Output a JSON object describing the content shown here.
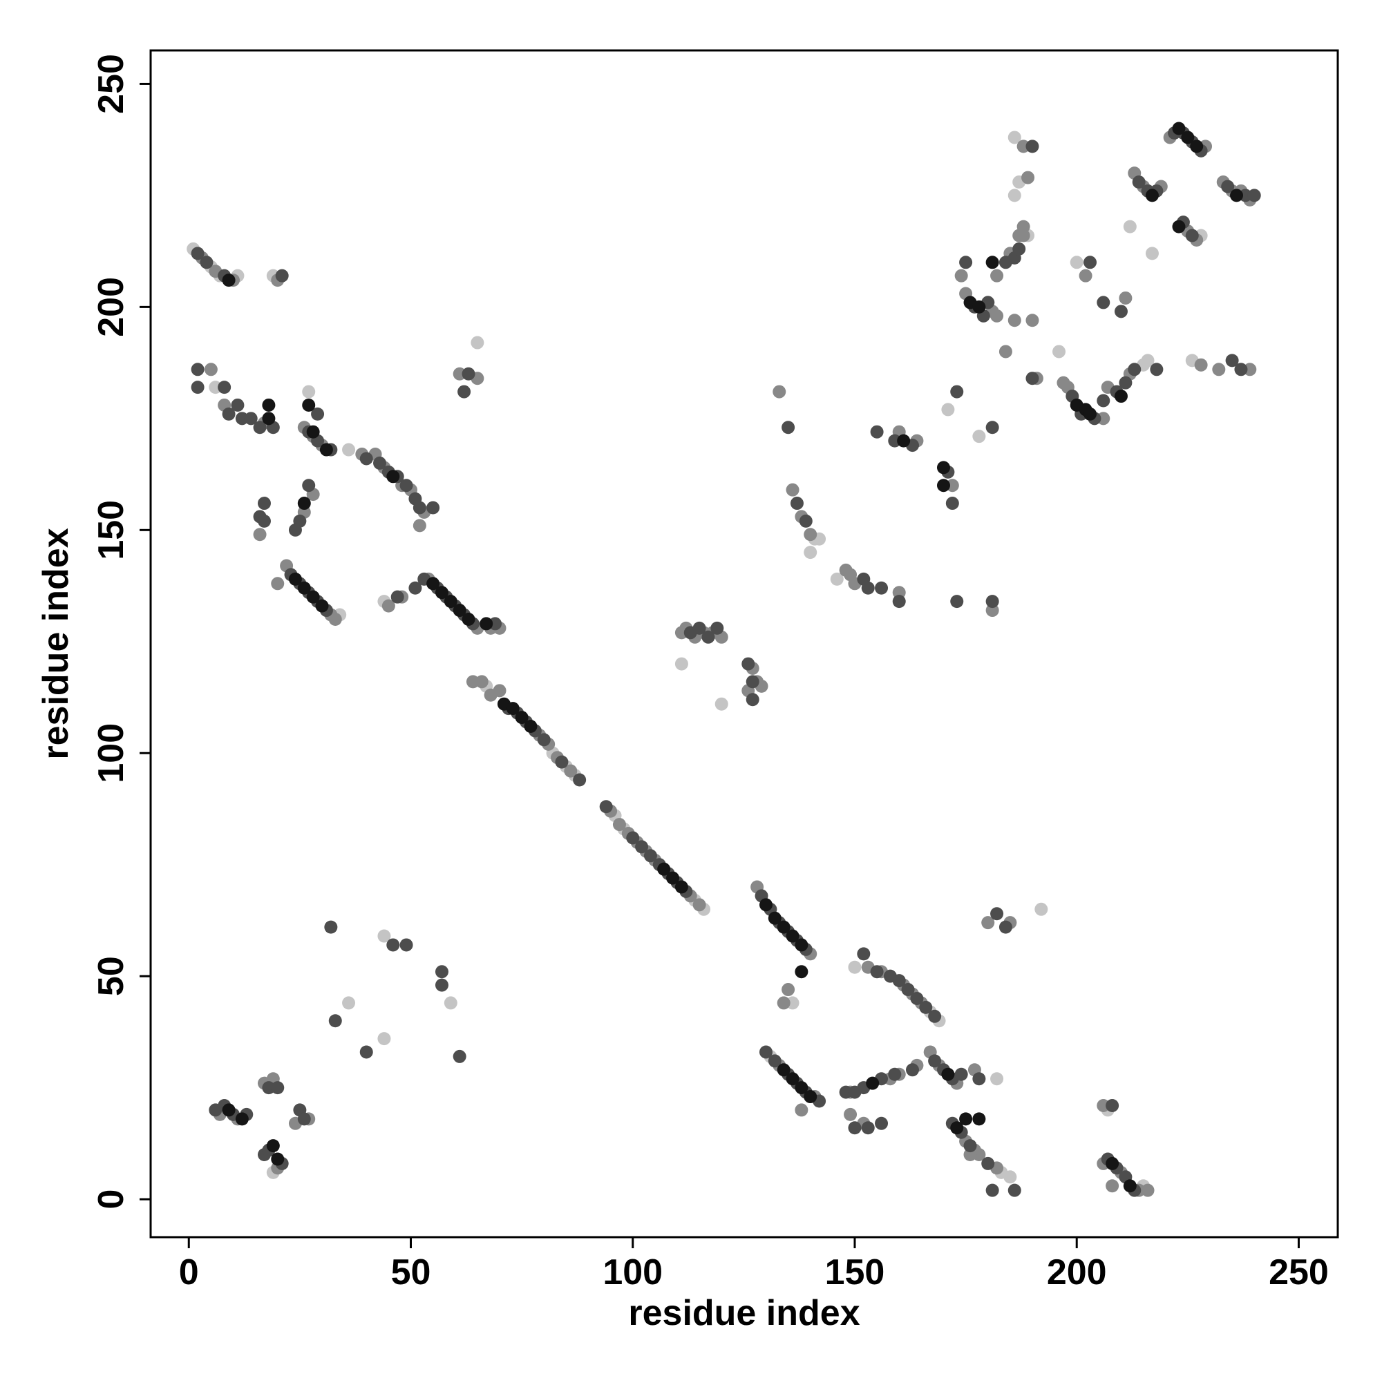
{
  "chart_data": {
    "type": "scatter",
    "xlabel": "residue index",
    "ylabel": "residue index",
    "xlim": [
      -8.6,
      258.8
    ],
    "ylim": [
      -8.5,
      257.5
    ],
    "xticks": [
      0,
      50,
      100,
      150,
      200,
      250
    ],
    "yticks": [
      0,
      50,
      100,
      150,
      200,
      250
    ],
    "grid": false,
    "series": [
      {
        "color": "#c4c4c4",
        "x": [
          1,
          5,
          7,
          11,
          19,
          6,
          27,
          36,
          44,
          65,
          67,
          82,
          85,
          87,
          96,
          98,
          114,
          116,
          111,
          120,
          140,
          141,
          142,
          146,
          171,
          178,
          186,
          187,
          186,
          189,
          196,
          200,
          212,
          217,
          216,
          215,
          226,
          228,
          34,
          9,
          19,
          36,
          44,
          44,
          59,
          131,
          136,
          150,
          167,
          169,
          182,
          183,
          185,
          192,
          215,
          207
        ],
        "y": [
          213,
          209,
          207,
          207,
          207,
          182,
          181,
          168,
          134,
          192,
          115,
          100,
          97,
          95,
          86,
          83,
          67,
          65,
          120,
          111,
          145,
          148,
          148,
          139,
          177,
          171,
          225,
          228,
          238,
          216,
          190,
          210,
          218,
          212,
          188,
          187,
          188,
          216,
          131,
          20,
          6,
          44,
          59,
          36,
          44,
          32,
          44,
          52,
          42,
          40,
          27,
          6,
          5,
          65,
          3,
          20
        ]
      },
      {
        "color": "#888888",
        "x": [
          54,
          65,
          68,
          70,
          64,
          66,
          68,
          70,
          79,
          81,
          83,
          86,
          95,
          97,
          99,
          101,
          103,
          105,
          113,
          115,
          128,
          140,
          135,
          3,
          6,
          10,
          20,
          5,
          8,
          17,
          26,
          28,
          30,
          28,
          26,
          16,
          20,
          22,
          32,
          33,
          39,
          42,
          44,
          48,
          50,
          53,
          52,
          45,
          48,
          61,
          65,
          111,
          112,
          114,
          116,
          118,
          120,
          127,
          126,
          128,
          129,
          133,
          136,
          138,
          140,
          148,
          149,
          150,
          160,
          160,
          164,
          172,
          181,
          174,
          175,
          180,
          181,
          182,
          182,
          185,
          188,
          184,
          186,
          190,
          187,
          188,
          189,
          188,
          191,
          197,
          198,
          206,
          207,
          212,
          202,
          211,
          213,
          215,
          219,
          221,
          229,
          225,
          227,
          233,
          235,
          237,
          239,
          232,
          239,
          228,
          7,
          11,
          17,
          19,
          24,
          27,
          20,
          138,
          134,
          133,
          141,
          149,
          158,
          160,
          164,
          149,
          152,
          153,
          156,
          161,
          163,
          165,
          167,
          169,
          173,
          177,
          175,
          177,
          178,
          182,
          176,
          180,
          185,
          206,
          206,
          210,
          214,
          216,
          208
        ],
        "y": [
          139,
          128,
          128,
          128,
          116,
          116,
          113,
          114,
          104,
          102,
          99,
          96,
          87,
          84,
          82,
          80,
          78,
          76,
          68,
          66,
          70,
          55,
          47,
          211,
          208,
          206,
          206,
          186,
          178,
          174,
          173,
          171,
          169,
          158,
          154,
          149,
          138,
          142,
          131,
          130,
          167,
          167,
          164,
          160,
          159,
          154,
          151,
          133,
          135,
          185,
          184,
          127,
          128,
          126,
          127,
          127,
          126,
          119,
          114,
          116,
          115,
          181,
          159,
          153,
          149,
          141,
          140,
          138,
          136,
          172,
          170,
          160,
          132,
          207,
          203,
          201,
          199,
          198,
          207,
          212,
          216,
          190,
          197,
          197,
          216,
          218,
          229,
          236,
          184,
          183,
          182,
          175,
          182,
          185,
          207,
          202,
          230,
          227,
          227,
          238,
          236,
          217,
          215,
          228,
          226,
          226,
          224,
          186,
          186,
          187,
          19,
          18,
          26,
          27,
          17,
          18,
          7,
          20,
          44,
          30,
          23,
          24,
          27,
          28,
          30,
          19,
          17,
          52,
          51,
          48,
          46,
          44,
          33,
          30,
          26,
          29,
          13,
          11,
          10,
          7,
          10,
          62,
          62,
          21,
          8,
          6,
          2,
          2,
          3
        ]
      },
      {
        "color": "#4d4d4d",
        "x": [
          53,
          56,
          58,
          60,
          62,
          64,
          69,
          72,
          74,
          76,
          78,
          80,
          84,
          88,
          94,
          100,
          102,
          104,
          106,
          108,
          110,
          112,
          129,
          131,
          133,
          135,
          137,
          139,
          2,
          4,
          8,
          21,
          2,
          2,
          8,
          9,
          11,
          12,
          14,
          16,
          19,
          29,
          27,
          29,
          32,
          27,
          25,
          24,
          16,
          17,
          17,
          23,
          25,
          27,
          29,
          31,
          40,
          43,
          45,
          47,
          49,
          51,
          52,
          55,
          51,
          47,
          62,
          63,
          113,
          115,
          117,
          119,
          126,
          127,
          127,
          135,
          137,
          139,
          152,
          153,
          156,
          160,
          155,
          159,
          163,
          171,
          172,
          173,
          181,
          173,
          181,
          175,
          177,
          179,
          180,
          184,
          186,
          187,
          190,
          190,
          199,
          201,
          204,
          206,
          209,
          211,
          213,
          218,
          203,
          206,
          210,
          214,
          216,
          218,
          222,
          224,
          226,
          228,
          224,
          226,
          234,
          238,
          240,
          235,
          237,
          6,
          8,
          10,
          13,
          18,
          20,
          25,
          26,
          17,
          18,
          21,
          32,
          33,
          40,
          46,
          49,
          57,
          57,
          61,
          130,
          132,
          135,
          137,
          139,
          142,
          148,
          150,
          152,
          156,
          159,
          163,
          152,
          155,
          158,
          160,
          162,
          164,
          166,
          168,
          168,
          170,
          172,
          174,
          178,
          172,
          174,
          176,
          180,
          186,
          181,
          150,
          153,
          156,
          207,
          209,
          211,
          213,
          182,
          184,
          208
        ],
        "y": [
          139,
          137,
          135,
          133,
          131,
          129,
          129,
          110,
          109,
          107,
          105,
          103,
          98,
          94,
          88,
          81,
          79,
          77,
          75,
          73,
          71,
          69,
          68,
          65,
          62,
          60,
          58,
          56,
          212,
          210,
          207,
          207,
          186,
          182,
          182,
          176,
          178,
          175,
          175,
          173,
          173,
          176,
          172,
          170,
          168,
          160,
          152,
          150,
          153,
          156,
          152,
          140,
          138,
          136,
          134,
          132,
          166,
          165,
          163,
          162,
          160,
          157,
          155,
          155,
          137,
          135,
          181,
          185,
          127,
          128,
          126,
          128,
          120,
          116,
          112,
          173,
          156,
          152,
          139,
          137,
          137,
          134,
          172,
          170,
          169,
          163,
          156,
          181,
          173,
          134,
          134,
          210,
          200,
          198,
          201,
          210,
          211,
          213,
          236,
          184,
          180,
          176,
          175,
          179,
          181,
          183,
          186,
          186,
          210,
          201,
          199,
          228,
          226,
          226,
          239,
          239,
          237,
          235,
          219,
          216,
          227,
          225,
          225,
          188,
          186,
          20,
          21,
          19,
          19,
          25,
          25,
          20,
          18,
          10,
          11,
          8,
          61,
          40,
          33,
          57,
          57,
          51,
          48,
          32,
          33,
          31,
          28,
          26,
          24,
          22,
          24,
          24,
          25,
          27,
          28,
          29,
          55,
          51,
          50,
          49,
          47,
          45,
          43,
          41,
          31,
          29,
          27,
          28,
          27,
          17,
          15,
          12,
          8,
          2,
          2,
          16,
          16,
          17,
          9,
          7,
          5,
          2,
          64,
          61,
          21
        ]
      },
      {
        "color": "#151515",
        "x": [
          55,
          57,
          59,
          61,
          63,
          67,
          71,
          73,
          75,
          77,
          109,
          107,
          111,
          130,
          132,
          134,
          136,
          138,
          138,
          18,
          18,
          27,
          28,
          31,
          26,
          46,
          24,
          26,
          28,
          30,
          9,
          176,
          178,
          181,
          200,
          202,
          203,
          210,
          223,
          225,
          227,
          217,
          236,
          223,
          161,
          170,
          170,
          134,
          136,
          138,
          140,
          173,
          175,
          178,
          171,
          154,
          19,
          20,
          9,
          12,
          212,
          208
        ],
        "y": [
          138,
          136,
          134,
          132,
          130,
          129,
          111,
          110,
          108,
          106,
          72,
          74,
          70,
          66,
          63,
          61,
          59,
          57,
          51,
          178,
          175,
          178,
          172,
          168,
          156,
          162,
          139,
          137,
          135,
          133,
          206,
          201,
          200,
          210,
          178,
          177,
          176,
          180,
          240,
          238,
          236,
          225,
          225,
          218,
          170,
          164,
          160,
          29,
          27,
          25,
          23,
          16,
          18,
          18,
          28,
          26,
          12,
          9,
          20,
          18,
          3,
          8
        ]
      }
    ]
  }
}
